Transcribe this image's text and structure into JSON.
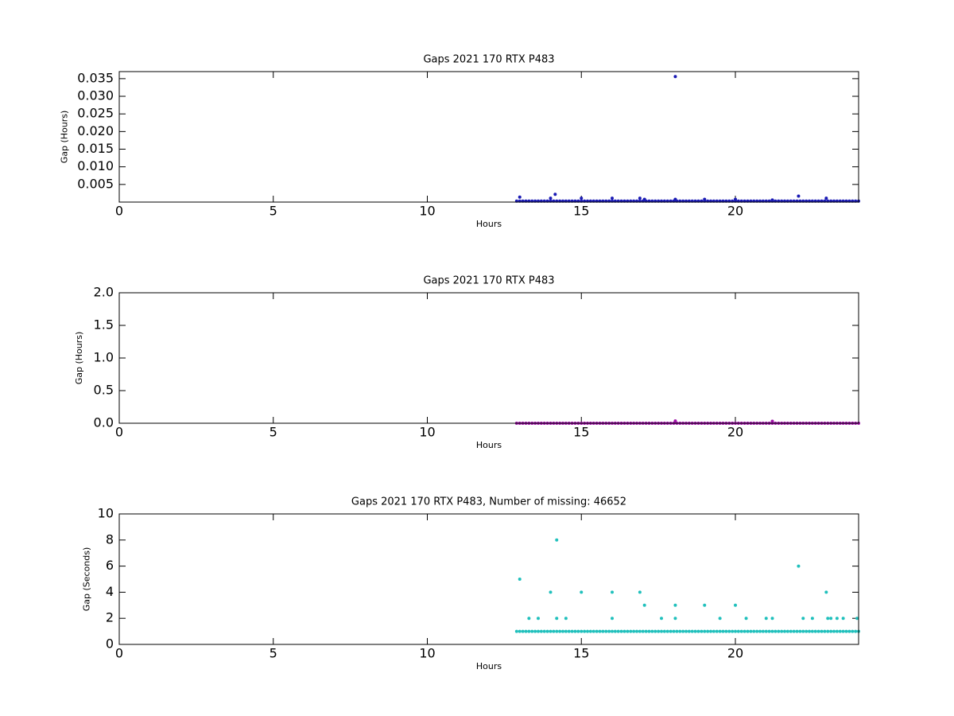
{
  "chart_data": [
    {
      "type": "scatter",
      "title": "Gaps 2021 170 RTX  P483",
      "x_label": "Hours",
      "y_label": "Gap (Hours)",
      "color": "#1a1ab4",
      "xlim": [
        0,
        24
      ],
      "xticks": [
        0,
        5,
        10,
        15,
        20
      ],
      "ylim": [
        0,
        0.037
      ],
      "yticks": [
        0.005,
        {
          "value": 0.01,
          "label": "0.010"
        },
        0.015,
        {
          "value": 0.02,
          "label": "0.020"
        },
        0.025,
        {
          "value": 0.03,
          "label": "0.030"
        },
        0.035
      ],
      "x": [
        12.9,
        13,
        13.1,
        13.2,
        13.3,
        13.4,
        13.5,
        13.6,
        13.7,
        13.8,
        13.9,
        14,
        14.1,
        14.2,
        14.3,
        14.4,
        14.5,
        14.6,
        14.7,
        14.8,
        14.9,
        15,
        15.1,
        15.2,
        15.3,
        15.4,
        15.5,
        15.6,
        15.7,
        15.8,
        15.9,
        16,
        16.1,
        16.2,
        16.3,
        16.4,
        16.5,
        16.6,
        16.7,
        16.8,
        16.9,
        17,
        17.1,
        17.2,
        17.3,
        17.4,
        17.5,
        17.6,
        17.7,
        17.8,
        17.9,
        18,
        18.1,
        18.2,
        18.3,
        18.4,
        18.5,
        18.6,
        18.7,
        18.8,
        18.9,
        19,
        19.1,
        19.2,
        19.3,
        19.4,
        19.5,
        19.6,
        19.7,
        19.8,
        19.9,
        20,
        20.1,
        20.2,
        20.3,
        20.4,
        20.5,
        20.6,
        20.7,
        20.8,
        20.9,
        21,
        21.1,
        21.2,
        21.3,
        21.4,
        21.5,
        21.6,
        21.7,
        21.8,
        21.9,
        22,
        22.1,
        22.2,
        22.3,
        22.4,
        22.5,
        22.6,
        22.7,
        22.8,
        22.9,
        23,
        23.1,
        23.2,
        23.3,
        23.4,
        23.5,
        23.6,
        23.7,
        23.8,
        23.9,
        24,
        13,
        14,
        14.15,
        15,
        16,
        16.9,
        17.05,
        18.05,
        18.05,
        19,
        20,
        21.2,
        22.05,
        22.95
      ],
      "values": [
        0.00028,
        0.00028,
        0.00028,
        0.00028,
        0.00028,
        0.00028,
        0.00028,
        0.00028,
        0.00028,
        0.00028,
        0.00028,
        0.00028,
        0.00028,
        0.00028,
        0.00028,
        0.00028,
        0.00028,
        0.00028,
        0.00028,
        0.00028,
        0.00028,
        0.00028,
        0.00028,
        0.00028,
        0.00028,
        0.00028,
        0.00028,
        0.00028,
        0.00028,
        0.00028,
        0.00028,
        0.00028,
        0.00028,
        0.00028,
        0.00028,
        0.00028,
        0.00028,
        0.00028,
        0.00028,
        0.00028,
        0.00028,
        0.00028,
        0.00028,
        0.00028,
        0.00028,
        0.00028,
        0.00028,
        0.00028,
        0.00028,
        0.00028,
        0.00028,
        0.00028,
        0.00028,
        0.00028,
        0.00028,
        0.00028,
        0.00028,
        0.00028,
        0.00028,
        0.00028,
        0.00028,
        0.00028,
        0.00028,
        0.00028,
        0.00028,
        0.00028,
        0.00028,
        0.00028,
        0.00028,
        0.00028,
        0.00028,
        0.00028,
        0.00028,
        0.00028,
        0.00028,
        0.00028,
        0.00028,
        0.00028,
        0.00028,
        0.00028,
        0.00028,
        0.00028,
        0.00028,
        0.00028,
        0.00028,
        0.00028,
        0.00028,
        0.00028,
        0.00028,
        0.00028,
        0.00028,
        0.00028,
        0.00028,
        0.00028,
        0.00028,
        0.00028,
        0.00028,
        0.00028,
        0.00028,
        0.00028,
        0.00028,
        0.00028,
        0.00028,
        0.00028,
        0.00028,
        0.00028,
        0.00028,
        0.00028,
        0.00028,
        0.00028,
        0.00028,
        0.00028,
        0.0014,
        0.0011,
        0.0022,
        0.0011,
        0.0011,
        0.0011,
        0.0008,
        0.0356,
        0.0008,
        0.0008,
        0.0008,
        0.0006,
        0.0017,
        0.0011
      ]
    },
    {
      "type": "scatter",
      "title": "Gaps 2021 170 RTX  P483",
      "x_label": "Hours",
      "y_label": "Gap (Hours)",
      "color": "#a010a8",
      "xlim": [
        0,
        24
      ],
      "xticks": [
        0,
        5,
        10,
        15,
        20
      ],
      "ylim": [
        0,
        2
      ],
      "yticks": [
        {
          "value": 0,
          "label": "0.0"
        },
        0.5,
        {
          "value": 1,
          "label": "1.0"
        },
        1.5,
        {
          "value": 2,
          "label": "2.0"
        }
      ],
      "x": [
        12.9,
        13,
        13.1,
        13.2,
        13.3,
        13.4,
        13.5,
        13.6,
        13.7,
        13.8,
        13.9,
        14,
        14.1,
        14.2,
        14.3,
        14.4,
        14.5,
        14.6,
        14.7,
        14.8,
        14.9,
        15,
        15.1,
        15.2,
        15.3,
        15.4,
        15.5,
        15.6,
        15.7,
        15.8,
        15.9,
        16,
        16.1,
        16.2,
        16.3,
        16.4,
        16.5,
        16.6,
        16.7,
        16.8,
        16.9,
        17,
        17.1,
        17.2,
        17.3,
        17.4,
        17.5,
        17.6,
        17.7,
        17.8,
        17.9,
        18,
        18.1,
        18.2,
        18.3,
        18.4,
        18.5,
        18.6,
        18.7,
        18.8,
        18.9,
        19,
        19.1,
        19.2,
        19.3,
        19.4,
        19.5,
        19.6,
        19.7,
        19.8,
        19.9,
        20,
        20.1,
        20.2,
        20.3,
        20.4,
        20.5,
        20.6,
        20.7,
        20.8,
        20.9,
        21,
        21.1,
        21.2,
        21.3,
        21.4,
        21.5,
        21.6,
        21.7,
        21.8,
        21.9,
        22,
        22.1,
        22.2,
        22.3,
        22.4,
        22.5,
        22.6,
        22.7,
        22.8,
        22.9,
        23,
        23.1,
        23.2,
        23.3,
        23.4,
        23.5,
        23.6,
        23.7,
        23.8,
        23.9,
        24,
        18.05,
        21.2
      ],
      "values": [
        0.00028,
        0.00028,
        0.00028,
        0.00028,
        0.00028,
        0.00028,
        0.00028,
        0.00028,
        0.00028,
        0.00028,
        0.00028,
        0.00028,
        0.00028,
        0.00028,
        0.00028,
        0.00028,
        0.00028,
        0.00028,
        0.00028,
        0.00028,
        0.00028,
        0.00028,
        0.00028,
        0.00028,
        0.00028,
        0.00028,
        0.00028,
        0.00028,
        0.00028,
        0.00028,
        0.00028,
        0.00028,
        0.00028,
        0.00028,
        0.00028,
        0.00028,
        0.00028,
        0.00028,
        0.00028,
        0.00028,
        0.00028,
        0.00028,
        0.00028,
        0.00028,
        0.00028,
        0.00028,
        0.00028,
        0.00028,
        0.00028,
        0.00028,
        0.00028,
        0.00028,
        0.00028,
        0.00028,
        0.00028,
        0.00028,
        0.00028,
        0.00028,
        0.00028,
        0.00028,
        0.00028,
        0.00028,
        0.00028,
        0.00028,
        0.00028,
        0.00028,
        0.00028,
        0.00028,
        0.00028,
        0.00028,
        0.00028,
        0.00028,
        0.00028,
        0.00028,
        0.00028,
        0.00028,
        0.00028,
        0.00028,
        0.00028,
        0.00028,
        0.00028,
        0.00028,
        0.00028,
        0.00028,
        0.00028,
        0.00028,
        0.00028,
        0.00028,
        0.00028,
        0.00028,
        0.00028,
        0.00028,
        0.00028,
        0.00028,
        0.00028,
        0.00028,
        0.00028,
        0.00028,
        0.00028,
        0.00028,
        0.00028,
        0.00028,
        0.00028,
        0.00028,
        0.00028,
        0.00028,
        0.00028,
        0.00028,
        0.00028,
        0.00028,
        0.00028,
        0.00028,
        0.0356,
        0.03
      ]
    },
    {
      "type": "scatter",
      "title": "Gaps 2021 170 RTX  P483, Number of missing: 46652",
      "x_label": "Hours",
      "y_label": "Gap (Seconds)",
      "color": "#20c0bc",
      "xlim": [
        0,
        24
      ],
      "xticks": [
        0,
        5,
        10,
        15,
        20
      ],
      "ylim": [
        0,
        10
      ],
      "yticks": [
        0,
        2,
        4,
        6,
        8,
        10
      ],
      "x": [
        12.9,
        13,
        13.1,
        13.2,
        13.3,
        13.4,
        13.5,
        13.6,
        13.7,
        13.8,
        13.9,
        14,
        14.1,
        14.2,
        14.3,
        14.4,
        14.5,
        14.6,
        14.7,
        14.8,
        14.9,
        15,
        15.1,
        15.2,
        15.3,
        15.4,
        15.5,
        15.6,
        15.7,
        15.8,
        15.9,
        16,
        16.1,
        16.2,
        16.3,
        16.4,
        16.5,
        16.6,
        16.7,
        16.8,
        16.9,
        17,
        17.1,
        17.2,
        17.3,
        17.4,
        17.5,
        17.6,
        17.7,
        17.8,
        17.9,
        18,
        18.1,
        18.2,
        18.3,
        18.4,
        18.5,
        18.6,
        18.7,
        18.8,
        18.9,
        19,
        19.1,
        19.2,
        19.3,
        19.4,
        19.5,
        19.6,
        19.7,
        19.8,
        19.9,
        20,
        20.1,
        20.2,
        20.3,
        20.4,
        20.5,
        20.6,
        20.7,
        20.8,
        20.9,
        21,
        21.1,
        21.2,
        21.3,
        21.4,
        21.5,
        21.6,
        21.7,
        21.8,
        21.9,
        22,
        22.1,
        22.2,
        22.3,
        22.4,
        22.5,
        22.6,
        22.7,
        22.8,
        22.9,
        23,
        23.1,
        23.2,
        23.3,
        23.4,
        23.5,
        23.6,
        23.7,
        23.8,
        23.9,
        24,
        13,
        13.3,
        13.6,
        14,
        14.2,
        14.2,
        14.5,
        15,
        16,
        16,
        16.9,
        17.05,
        17.6,
        18.05,
        18.05,
        19,
        19.5,
        20,
        20.35,
        21,
        21.2,
        22.05,
        22.2,
        22.5,
        22.95,
        23,
        23.1,
        23.3,
        23.5,
        23.95
      ],
      "values": [
        1,
        1,
        1,
        1,
        1,
        1,
        1,
        1,
        1,
        1,
        1,
        1,
        1,
        1,
        1,
        1,
        1,
        1,
        1,
        1,
        1,
        1,
        1,
        1,
        1,
        1,
        1,
        1,
        1,
        1,
        1,
        1,
        1,
        1,
        1,
        1,
        1,
        1,
        1,
        1,
        1,
        1,
        1,
        1,
        1,
        1,
        1,
        1,
        1,
        1,
        1,
        1,
        1,
        1,
        1,
        1,
        1,
        1,
        1,
        1,
        1,
        1,
        1,
        1,
        1,
        1,
        1,
        1,
        1,
        1,
        1,
        1,
        1,
        1,
        1,
        1,
        1,
        1,
        1,
        1,
        1,
        1,
        1,
        1,
        1,
        1,
        1,
        1,
        1,
        1,
        1,
        1,
        1,
        1,
        1,
        1,
        1,
        1,
        1,
        1,
        1,
        1,
        1,
        1,
        1,
        1,
        1,
        1,
        1,
        1,
        1,
        1,
        5,
        2,
        2,
        4,
        8,
        2,
        2,
        4,
        4,
        2,
        4,
        3,
        2,
        3,
        2,
        3,
        2,
        3,
        2,
        2,
        2,
        6,
        2,
        2,
        4,
        2,
        2,
        2,
        2,
        2
      ]
    }
  ]
}
